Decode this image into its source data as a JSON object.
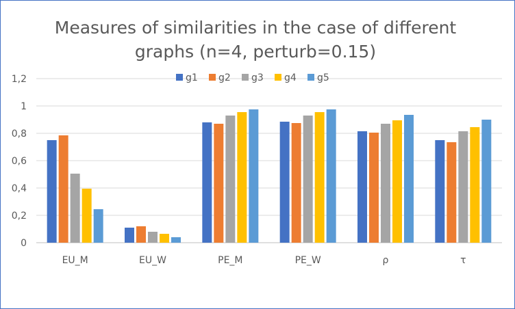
{
  "chart_data": {
    "type": "bar",
    "title_lines": [
      "Measures of similarities in the case of different",
      "graphs (n=4, perturb=0.15)"
    ],
    "categories": [
      "EU_M",
      "EU_W",
      "PE_M",
      "PE_W",
      "ρ",
      "τ"
    ],
    "series": [
      {
        "name": "g1",
        "color": "#4472c4",
        "values": [
          0.75,
          0.11,
          0.88,
          0.885,
          0.815,
          0.75
        ]
      },
      {
        "name": "g2",
        "color": "#ed7d31",
        "values": [
          0.785,
          0.12,
          0.87,
          0.875,
          0.805,
          0.735
        ]
      },
      {
        "name": "g3",
        "color": "#a5a5a5",
        "values": [
          0.505,
          0.08,
          0.93,
          0.93,
          0.87,
          0.815
        ]
      },
      {
        "name": "g4",
        "color": "#ffc000",
        "values": [
          0.395,
          0.065,
          0.955,
          0.955,
          0.895,
          0.845
        ]
      },
      {
        "name": "g5",
        "color": "#5b9bd5",
        "values": [
          0.245,
          0.04,
          0.975,
          0.975,
          0.935,
          0.9
        ]
      }
    ],
    "ylim": [
      0,
      1.2
    ],
    "y_ticks": [
      0,
      0.2,
      0.4,
      0.6,
      0.8,
      1,
      1.2
    ],
    "y_tick_labels": [
      "0",
      "0,2",
      "0,4",
      "0,6",
      "0,8",
      "1",
      "1,2"
    ],
    "grid": true,
    "legend_position": "top",
    "xlabel": "",
    "ylabel": ""
  }
}
